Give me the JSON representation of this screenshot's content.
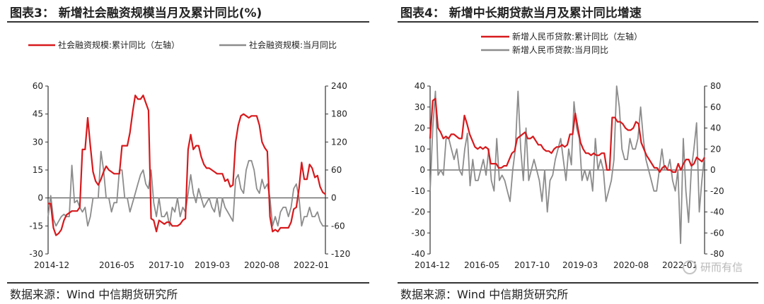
{
  "colors": {
    "cumulative": "#d7191c",
    "monthly": "#8c8c8c",
    "axis": "#333333"
  },
  "watermark": {
    "text": "研而有信",
    "icon": "wechat-icon"
  },
  "chart_data": [
    {
      "type": "line",
      "title": "图表3： 新增社会融资规模当月及累计同比(%)",
      "source": "数据来源：Wind 中信期货研究所",
      "x_labels": [
        "2014-12",
        "2016-05",
        "2017-10",
        "2019-03",
        "2020-08",
        "2022-01"
      ],
      "y_left": {
        "min": -30,
        "max": 60,
        "ticks": [
          60,
          45,
          30,
          15,
          0,
          -15,
          -30
        ]
      },
      "y_right": {
        "min": -120,
        "max": 240,
        "ticks": [
          240,
          180,
          120,
          60,
          0,
          -60,
          -120
        ]
      },
      "series": [
        {
          "name": "社会融资规模:累计同比（左轴）",
          "axis": "left",
          "color": "#d7191c",
          "values": [
            -3,
            -3,
            -16,
            -20,
            -19,
            -17,
            -12,
            -9,
            -8,
            -7,
            -7,
            -7,
            -5,
            26,
            26,
            43,
            28,
            14,
            9,
            7,
            10,
            14,
            17,
            15,
            14,
            13,
            13,
            13,
            28,
            28,
            28,
            35,
            46,
            55,
            53,
            53,
            55,
            51,
            47,
            -11,
            -12,
            -18,
            -12,
            -13,
            -14,
            -13,
            -13,
            -15,
            -15,
            -15,
            -14,
            -12,
            -11,
            26,
            34,
            26,
            28,
            28,
            22,
            18,
            16,
            16,
            15,
            14,
            13,
            13,
            13,
            9,
            10,
            6,
            7,
            30,
            39,
            44,
            45,
            44,
            43,
            44,
            44,
            44,
            39,
            30,
            27,
            25,
            -10,
            -18,
            -17,
            -18,
            -16,
            -16,
            -16,
            -16,
            -13,
            -6,
            -5,
            5,
            19,
            10,
            10,
            18,
            16,
            11,
            12,
            6,
            3,
            2
          ]
        },
        {
          "name": "社会融资规模:当月同比",
          "axis": "right",
          "color": "#8c8c8c",
          "values": [
            -40,
            5,
            -45,
            -60,
            -50,
            -40,
            -35,
            -40,
            -40,
            70,
            -10,
            -5,
            -20,
            -30,
            -20,
            -60,
            -40,
            0,
            0,
            0,
            100,
            60,
            0,
            0,
            -30,
            -10,
            -10,
            60,
            60,
            0,
            0,
            -30,
            -10,
            10,
            30,
            50,
            60,
            30,
            20,
            60,
            -10,
            -40,
            0,
            -40,
            -40,
            -30,
            -60,
            -20,
            -30,
            0,
            -40,
            -20,
            -30,
            10,
            50,
            10,
            -10,
            20,
            0,
            -20,
            -10,
            0,
            -20,
            -30,
            0,
            -40,
            0,
            -20,
            -30,
            -40,
            -50,
            40,
            50,
            20,
            10,
            60,
            80,
            80,
            60,
            20,
            10,
            40,
            20,
            30,
            0,
            -60,
            -40,
            -60,
            -30,
            -20,
            -20,
            -40,
            -20,
            20,
            30,
            0,
            -60,
            -40,
            -40,
            -20,
            -40,
            -40,
            -30,
            -50,
            -60,
            -60
          ]
        }
      ]
    },
    {
      "type": "line",
      "title": "图表4： 新增中长期贷款当月及累计同比增速",
      "source": "数据来源：Wind 中信期货研究所",
      "x_labels": [
        "2014-12",
        "2016-05",
        "2017-10",
        "2019-03",
        "2020-08",
        "2022-01"
      ],
      "y_left": {
        "min": -40,
        "max": 40,
        "ticks": [
          40,
          30,
          20,
          10,
          0,
          -10,
          -20,
          -30,
          -40
        ]
      },
      "y_right": {
        "min": -80,
        "max": 80,
        "ticks": [
          80,
          60,
          40,
          20,
          0,
          -20,
          -40,
          -60,
          -80
        ]
      },
      "series": [
        {
          "name": "新增人民币贷款:累计同比（左轴）",
          "axis": "left",
          "color": "#d7191c",
          "values": [
            15,
            33,
            34,
            20,
            18,
            15,
            16,
            15,
            17,
            17,
            16,
            15,
            15,
            26,
            22,
            17,
            14,
            11,
            10,
            11,
            10,
            11,
            10,
            3,
            3,
            3,
            1,
            1,
            2,
            2,
            5,
            8,
            9,
            15,
            16,
            17,
            18,
            15,
            15,
            16,
            14,
            12,
            12,
            10,
            9,
            9,
            8,
            10,
            11,
            11,
            12,
            11,
            12,
            17,
            17,
            27,
            20,
            13,
            10,
            8,
            8,
            7,
            8,
            7,
            7,
            8,
            8,
            0,
            0,
            25,
            25,
            23,
            23,
            22,
            20,
            19,
            19,
            20,
            23,
            22,
            13,
            10,
            7,
            5,
            3,
            1,
            1,
            -1,
            1,
            2,
            0,
            0,
            -1,
            -1,
            3,
            0,
            3,
            5,
            5,
            2,
            3,
            6,
            5,
            4,
            6
          ]
        },
        {
          "name": "新增人民币贷款:当月同比",
          "axis": "right",
          "color": "#8c8c8c",
          "values": [
            -20,
            40,
            75,
            -5,
            0,
            -5,
            30,
            30,
            20,
            10,
            20,
            0,
            -5,
            20,
            35,
            -15,
            10,
            -10,
            -10,
            0,
            10,
            -5,
            20,
            -10,
            -20,
            30,
            -10,
            -5,
            -10,
            -20,
            -30,
            0,
            20,
            75,
            20,
            -10,
            40,
            -10,
            0,
            10,
            0,
            -10,
            -30,
            0,
            -40,
            -10,
            -5,
            10,
            20,
            30,
            10,
            -10,
            20,
            5,
            65,
            40,
            30,
            -10,
            0,
            -10,
            0,
            -20,
            30,
            0,
            10,
            0,
            -30,
            -20,
            -10,
            10,
            80,
            60,
            20,
            10,
            10,
            30,
            20,
            20,
            30,
            60,
            30,
            10,
            0,
            -10,
            -20,
            -20,
            0,
            20,
            0,
            0,
            10,
            -10,
            -20,
            0,
            -70,
            30,
            -20,
            -50,
            0,
            20,
            45,
            -40,
            -10,
            15
          ]
        }
      ]
    }
  ]
}
